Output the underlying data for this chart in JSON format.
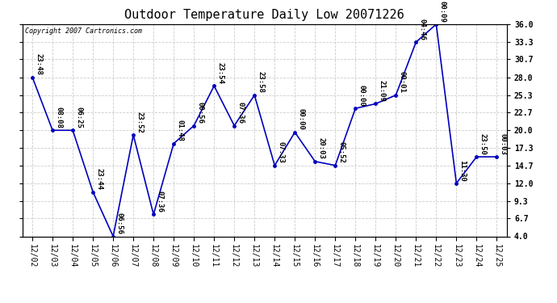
{
  "title": "Outdoor Temperature Daily Low 20071226",
  "copyright": "Copyright 2007 Cartronics.com",
  "x_labels": [
    "12/02",
    "12/03",
    "12/04",
    "12/05",
    "12/06",
    "12/07",
    "12/08",
    "12/09",
    "12/10",
    "12/11",
    "12/12",
    "12/13",
    "12/14",
    "12/15",
    "12/16",
    "12/17",
    "12/18",
    "12/19",
    "12/20",
    "12/21",
    "12/22",
    "12/23",
    "12/24",
    "12/25"
  ],
  "y_values": [
    28.0,
    20.0,
    20.0,
    10.7,
    4.0,
    19.3,
    7.3,
    18.0,
    20.7,
    26.7,
    20.7,
    25.3,
    14.7,
    19.7,
    15.3,
    14.7,
    23.3,
    24.0,
    25.3,
    33.3,
    36.0,
    12.0,
    16.0,
    16.0
  ],
  "annotations": [
    "23:48",
    "08:08",
    "06:25",
    "23:44",
    "06:56",
    "23:52",
    "07:36",
    "01:48",
    "00:56",
    "23:54",
    "07:36",
    "23:58",
    "07:33",
    "00:00",
    "20:03",
    "05:52",
    "00:00",
    "21:09",
    "00:01",
    "04:46",
    "00:09",
    "11:30",
    "23:50",
    "00:03"
  ],
  "ylim_min": 4.0,
  "ylim_max": 36.0,
  "yticks": [
    4.0,
    6.7,
    9.3,
    12.0,
    14.7,
    17.3,
    20.0,
    22.7,
    25.3,
    28.0,
    30.7,
    33.3,
    36.0
  ],
  "line_color": "#0000bb",
  "marker_color": "#0000bb",
  "background_color": "#ffffff",
  "grid_color": "#cccccc",
  "title_fontsize": 11,
  "tick_fontsize": 7,
  "annotation_fontsize": 6.5,
  "copyright_fontsize": 6
}
